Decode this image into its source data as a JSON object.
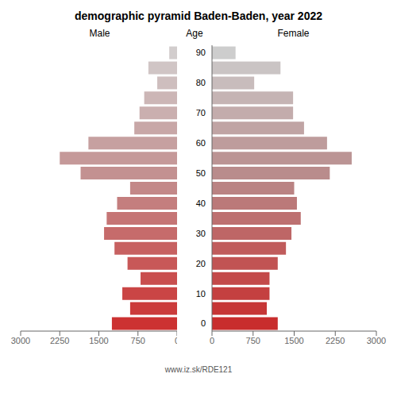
{
  "chart_data": {
    "type": "bar",
    "orientation": "horizontal",
    "title": "demographic pyramid Baden-Baden, year 2022",
    "ylabel": "Age",
    "categories": [
      "0",
      null,
      "10",
      null,
      "20",
      null,
      "30",
      null,
      "40",
      null,
      "50",
      null,
      "60",
      null,
      "70",
      null,
      "80",
      null,
      "90"
    ],
    "series": [
      {
        "name": "Male",
        "values": [
          1250,
          900,
          1050,
          700,
          950,
          1200,
          1400,
          1350,
          1150,
          900,
          1850,
          2250,
          1700,
          820,
          720,
          630,
          380,
          550,
          150
        ],
        "colors": [
          "#cc3232",
          "#cb3b3b",
          "#ca4545",
          "#c94e4e",
          "#c85858",
          "#c76161",
          "#c66b6b",
          "#c57575",
          "#c47e7e",
          "#c38888",
          "#c39191",
          "#c59999",
          "#c6a0a0",
          "#c8a7a7",
          "#caafaf",
          "#ccb6b6",
          "#cebebe",
          "#d0c5c5",
          "#d2cdcd"
        ]
      },
      {
        "name": "Female",
        "values": [
          1200,
          1000,
          1050,
          1050,
          1200,
          1350,
          1450,
          1620,
          1550,
          1500,
          2150,
          2550,
          2100,
          1680,
          1480,
          1480,
          770,
          1250,
          430
        ],
        "colors": [
          "#c82d2d",
          "#c63636",
          "#c44040",
          "#c34949",
          "#c15353",
          "#c05c5c",
          "#be6666",
          "#bd7070",
          "#bb7979",
          "#ba8383",
          "#b98c8c",
          "#bb9494",
          "#be9c9c",
          "#c0a4a4",
          "#c3acac",
          "#c5b4b4",
          "#c8bcbc",
          "#cac4c4",
          "#cdcdcd"
        ]
      }
    ],
    "xlim": [
      0,
      3000
    ],
    "xticks": [
      0,
      750,
      1500,
      2250,
      3000
    ],
    "grid": false,
    "annotations": [
      "www.iz.sk/RDE121"
    ]
  }
}
